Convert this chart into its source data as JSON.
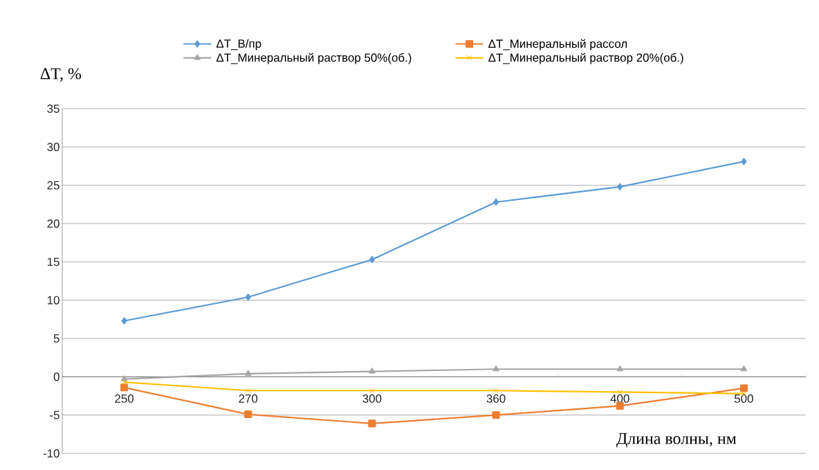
{
  "chart_data": {
    "type": "line",
    "xlabel": "Длина волны, нм",
    "ylabel": "ΔT, %",
    "categories": [
      "250",
      "270",
      "300",
      "360",
      "400",
      "500"
    ],
    "series": [
      {
        "name": "ΔT_В/пр",
        "color": "#5b9bd5",
        "marker": "diamond",
        "values": [
          7.3,
          10.4,
          15.3,
          22.8,
          24.8,
          28.1
        ]
      },
      {
        "name": "ΔT_Минеральный рассол",
        "color": "#ed7d31",
        "marker": "square",
        "values": [
          -1.4,
          -4.9,
          -6.1,
          -5.0,
          -3.8,
          -1.5
        ]
      },
      {
        "name": "ΔT_Минеральный раствор 50%(об.)",
        "color": "#a5a5a5",
        "marker": "triangle",
        "values": [
          -0.3,
          0.4,
          0.7,
          1.0,
          1.0,
          1.0
        ]
      },
      {
        "name": "ΔT_Минеральный раствор 20%(об.)",
        "color": "#ffc000",
        "marker": "cross",
        "values": [
          -0.7,
          -1.8,
          -1.8,
          -1.8,
          -2.0,
          -2.2
        ]
      }
    ],
    "ylim": [
      -10,
      35
    ],
    "yticks": [
      -10,
      -5,
      0,
      5,
      10,
      15,
      20,
      25,
      30,
      35
    ],
    "grid": "y",
    "legend": "top",
    "line_style": "solid"
  }
}
